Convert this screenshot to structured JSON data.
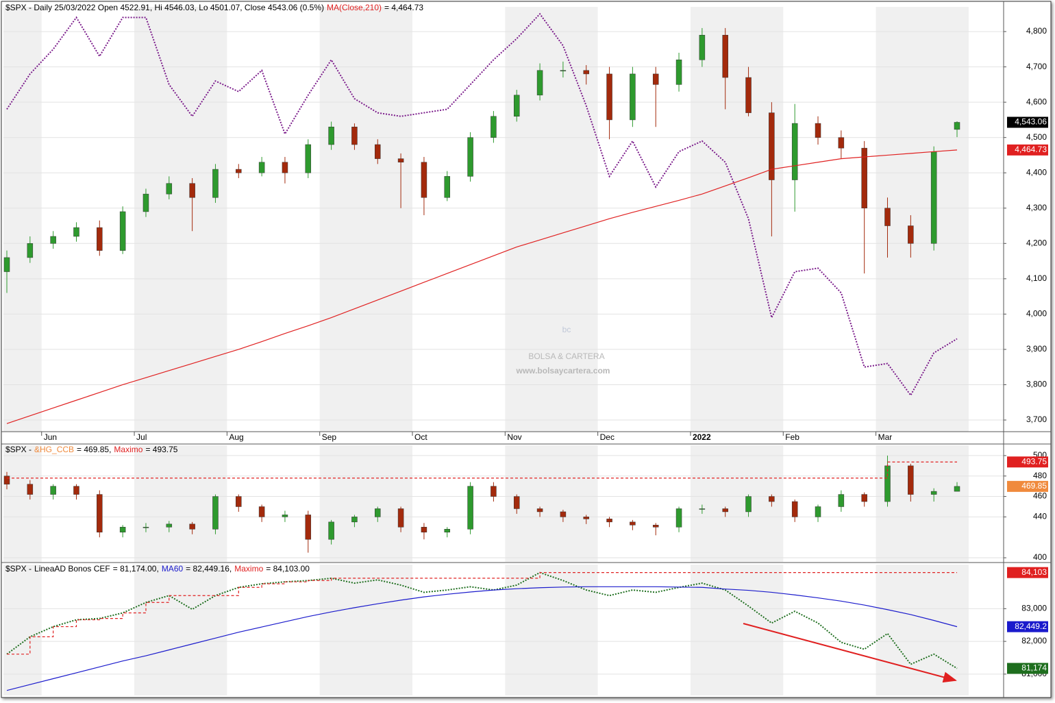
{
  "chart_data": [
    {
      "type": "candlestick",
      "title": "$SPX - Daily 25/03/2022 Open 4522.91, Hi 4546.03, Lo 4501.07, Close 4543.06 (0.5%)",
      "categories": [
        null,
        null,
        "Jun",
        null,
        null,
        null,
        "Jul",
        null,
        null,
        null,
        "Aug",
        null,
        null,
        null,
        "Sep",
        null,
        null,
        null,
        "Oct",
        null,
        null,
        null,
        "Nov",
        null,
        null,
        null,
        "Dec",
        null,
        null,
        null,
        "2022",
        null,
        null,
        null,
        "Feb",
        null,
        null,
        null,
        "Mar",
        null,
        null,
        null
      ],
      "open": [
        4120,
        4160,
        4200,
        4220,
        4245,
        4180,
        4290,
        4340,
        4370,
        4330,
        4410,
        4400,
        4430,
        4400,
        4480,
        4530,
        4480,
        4440,
        4430,
        4330,
        4390,
        4500,
        4560,
        4620,
        4690,
        4690,
        4680,
        4550,
        4680,
        4650,
        4720,
        4790,
        4670,
        4570,
        4380,
        4540,
        4500,
        4470,
        4300,
        4250,
        4200,
        4522.91
      ],
      "high": [
        4180,
        4220,
        4235,
        4260,
        4265,
        4305,
        4355,
        4390,
        4385,
        4425,
        4425,
        4445,
        4445,
        4495,
        4545,
        4540,
        4495,
        4455,
        4445,
        4405,
        4515,
        4575,
        4635,
        4710,
        4715,
        4705,
        4700,
        4700,
        4700,
        4740,
        4810,
        4810,
        4700,
        4600,
        4595,
        4560,
        4520,
        4490,
        4330,
        4280,
        4475,
        4546.03
      ],
      "low": [
        4060,
        4145,
        4185,
        4205,
        4165,
        4170,
        4275,
        4325,
        4235,
        4315,
        4385,
        4390,
        4370,
        4385,
        4465,
        4465,
        4425,
        4300,
        4280,
        4320,
        4375,
        4485,
        4545,
        4605,
        4670,
        4650,
        4495,
        4530,
        4530,
        4630,
        4700,
        4580,
        4560,
        4220,
        4290,
        4480,
        4440,
        4115,
        4160,
        4160,
        4180,
        4501.07
      ],
      "close": [
        4160,
        4200,
        4220,
        4245,
        4180,
        4290,
        4340,
        4370,
        4330,
        4410,
        4400,
        4430,
        4400,
        4480,
        4530,
        4480,
        4440,
        4430,
        4330,
        4390,
        4500,
        4560,
        4620,
        4690,
        4690,
        4680,
        4550,
        4680,
        4650,
        4720,
        4790,
        4670,
        4570,
        4380,
        4540,
        4500,
        4470,
        4300,
        4250,
        4200,
        4460,
        4543.06
      ],
      "up_color": "#2e9a2e",
      "down_color": "#a32a0c",
      "series": [
        {
          "name": "MA(Close,210)",
          "legend_text": "= 4,464.73",
          "color": "#e02020",
          "style": "solid",
          "values": [
            3690,
            3712,
            3734,
            3756,
            3778,
            3800,
            3820,
            3840,
            3860,
            3880,
            3900,
            3922,
            3945,
            3967,
            3990,
            4015,
            4040,
            4065,
            4090,
            4115,
            4140,
            4165,
            4190,
            4210,
            4230,
            4250,
            4270,
            4288,
            4305,
            4322,
            4340,
            4363,
            4386,
            4410,
            4420,
            4430,
            4440,
            4445,
            4450,
            4455,
            4460,
            4464.73
          ]
        },
        {
          "color": "#7a1a8a",
          "style": "dotted",
          "values": [
            4580,
            4680,
            4750,
            4840,
            4730,
            4840,
            4840,
            4650,
            4560,
            4660,
            4630,
            4690,
            4510,
            4620,
            4720,
            4610,
            4570,
            4560,
            4570,
            4580,
            4650,
            4720,
            4780,
            4850,
            4760,
            4590,
            4390,
            4490,
            4360,
            4460,
            4490,
            4430,
            4270,
            3990,
            4120,
            4130,
            4060,
            3850,
            3860,
            3770,
            3890,
            3930
          ]
        }
      ],
      "ylim": [
        3667,
        4870
      ],
      "yticks": [
        {
          "value": 3700,
          "label": "3,700"
        },
        {
          "value": 3800,
          "label": "3,800"
        },
        {
          "value": 3900,
          "label": "3,900"
        },
        {
          "value": 4000,
          "label": "4,000"
        },
        {
          "value": 4100,
          "label": "4,100"
        },
        {
          "value": 4200,
          "label": "4,200"
        },
        {
          "value": 4300,
          "label": "4,300"
        },
        {
          "value": 4400,
          "label": "4,400"
        },
        {
          "value": 4500,
          "label": "4,500"
        },
        {
          "value": 4600,
          "label": "4,600"
        },
        {
          "value": 4700,
          "label": "4,700"
        },
        {
          "value": 4800,
          "label": "4,800"
        }
      ],
      "grid": true,
      "price_tags": [
        {
          "value": 4543.06,
          "label": "4,543.06",
          "color": "#000000"
        },
        {
          "value": 4464.73,
          "label": "4,464.73",
          "color": "#e02020"
        }
      ],
      "watermark": {
        "logo": "bc",
        "brand": "BOLSA & CARTERA",
        "url": "www.bolsaycartera.com"
      }
    },
    {
      "type": "candlestick",
      "title": "$SPX -",
      "name": "&HG_CCB",
      "name_color": "#f08a3c",
      "legend_text": "= 469.85,",
      "open": [
        480,
        472,
        462,
        470,
        462,
        425,
        430,
        430,
        433,
        428,
        460,
        450,
        440,
        442,
        418,
        435,
        440,
        448,
        430,
        425,
        428,
        470,
        460,
        448,
        445,
        440,
        438,
        435,
        432,
        430,
        448,
        448,
        445,
        460,
        455,
        440,
        450,
        462,
        455,
        490,
        462,
        465
      ],
      "high": [
        484,
        476,
        472,
        472,
        466,
        432,
        434,
        436,
        435,
        462,
        462,
        452,
        446,
        446,
        437,
        442,
        450,
        450,
        434,
        430,
        474,
        474,
        462,
        450,
        447,
        442,
        440,
        437,
        434,
        450,
        452,
        450,
        462,
        462,
        457,
        452,
        466,
        464,
        500,
        492,
        468,
        474
      ],
      "low": [
        467,
        457,
        457,
        457,
        420,
        420,
        425,
        425,
        423,
        423,
        445,
        435,
        435,
        405,
        413,
        430,
        435,
        425,
        418,
        420,
        423,
        455,
        443,
        440,
        435,
        433,
        430,
        427,
        422,
        425,
        443,
        440,
        440,
        450,
        435,
        435,
        445,
        450,
        450,
        455,
        455,
        465
      ],
      "close": [
        472,
        462,
        470,
        462,
        425,
        430,
        430,
        433,
        428,
        460,
        450,
        440,
        442,
        418,
        435,
        440,
        448,
        430,
        425,
        428,
        470,
        460,
        448,
        445,
        440,
        438,
        435,
        432,
        430,
        448,
        448,
        445,
        460,
        455,
        440,
        450,
        462,
        455,
        490,
        462,
        465,
        469.85
      ],
      "up_color": "#2e9a2e",
      "down_color": "#a32a0c",
      "series": [
        {
          "name": "Maximo",
          "legend_text": "= 493.75",
          "color": "#e02020",
          "style": "dashed",
          "step": true,
          "values": [
            478,
            478,
            478,
            478,
            478,
            478,
            478,
            478,
            478,
            478,
            478,
            478,
            478,
            478,
            478,
            478,
            478,
            478,
            478,
            478,
            478,
            478,
            478,
            478,
            478,
            478,
            478,
            478,
            478,
            478,
            478,
            478,
            478,
            478,
            478,
            478,
            478,
            478,
            493.75,
            493.75,
            493.75,
            493.75
          ]
        }
      ],
      "ylim": [
        396,
        510
      ],
      "yticks": [
        400,
        440,
        460,
        480,
        500
      ],
      "grid": true,
      "price_tags": [
        {
          "value": 493.75,
          "label": "493.75",
          "color": "#e02020"
        },
        {
          "value": 469.85,
          "label": "469.85",
          "color": "#f08a3c"
        }
      ]
    },
    {
      "type": "line",
      "title": "$SPX -",
      "series": [
        {
          "name": "LineaAD Bonos CEF",
          "legend_text": "= 81,174.00,",
          "color": "#1e6e1e",
          "style": "dotted",
          "name_color": "#000000",
          "values": [
            81610,
            82140,
            82450,
            82660,
            82700,
            82870,
            83190,
            83400,
            82980,
            83400,
            83650,
            83760,
            83820,
            83860,
            83930,
            83780,
            83880,
            83720,
            83500,
            83570,
            83670,
            83570,
            83720,
            84103,
            83860,
            83570,
            83400,
            83570,
            83500,
            83650,
            83780,
            83570,
            83080,
            82560,
            82920,
            82560,
            81970,
            81760,
            82240,
            81300,
            81610,
            81174
          ]
        },
        {
          "name": "MA60",
          "legend_text": "= 82,449.16,",
          "color": "#1a1acc",
          "style": "solid",
          "values": [
            80500,
            80680,
            80860,
            81040,
            81220,
            81400,
            81560,
            81740,
            81920,
            82100,
            82280,
            82440,
            82600,
            82760,
            82900,
            83030,
            83150,
            83260,
            83360,
            83440,
            83510,
            83570,
            83610,
            83640,
            83660,
            83670,
            83670,
            83670,
            83670,
            83660,
            83650,
            83600,
            83560,
            83500,
            83420,
            83330,
            83230,
            83110,
            82970,
            82820,
            82640,
            82449.16
          ]
        },
        {
          "name": "Maximo",
          "legend_text": "= 84,103.00",
          "color": "#e02020",
          "style": "dashed",
          "step": true,
          "values": [
            81610,
            82140,
            82450,
            82660,
            82700,
            82870,
            83190,
            83400,
            83400,
            83400,
            83650,
            83760,
            83820,
            83860,
            83930,
            83930,
            83930,
            83930,
            83930,
            83930,
            83930,
            83930,
            83930,
            84103,
            84103,
            84103,
            84103,
            84103,
            84103,
            84103,
            84103,
            84103,
            84103,
            84103,
            84103,
            84103,
            84103,
            84103,
            84103,
            84103,
            84103,
            84103
          ]
        }
      ],
      "ylim": [
        80347,
        84347
      ],
      "yticks": [
        {
          "value": 81000,
          "label": "81,000"
        },
        {
          "value": 82000,
          "label": "82,000"
        },
        {
          "value": 83000,
          "label": "83,000"
        }
      ],
      "grid": true,
      "price_tags": [
        {
          "value": 84103,
          "label": "84,103",
          "color": "#e02020"
        },
        {
          "value": 82449.16,
          "label": "82,449.2",
          "color": "#1a1acc"
        },
        {
          "value": 81174,
          "label": "81,174",
          "color": "#1e6e1e"
        }
      ]
    }
  ]
}
